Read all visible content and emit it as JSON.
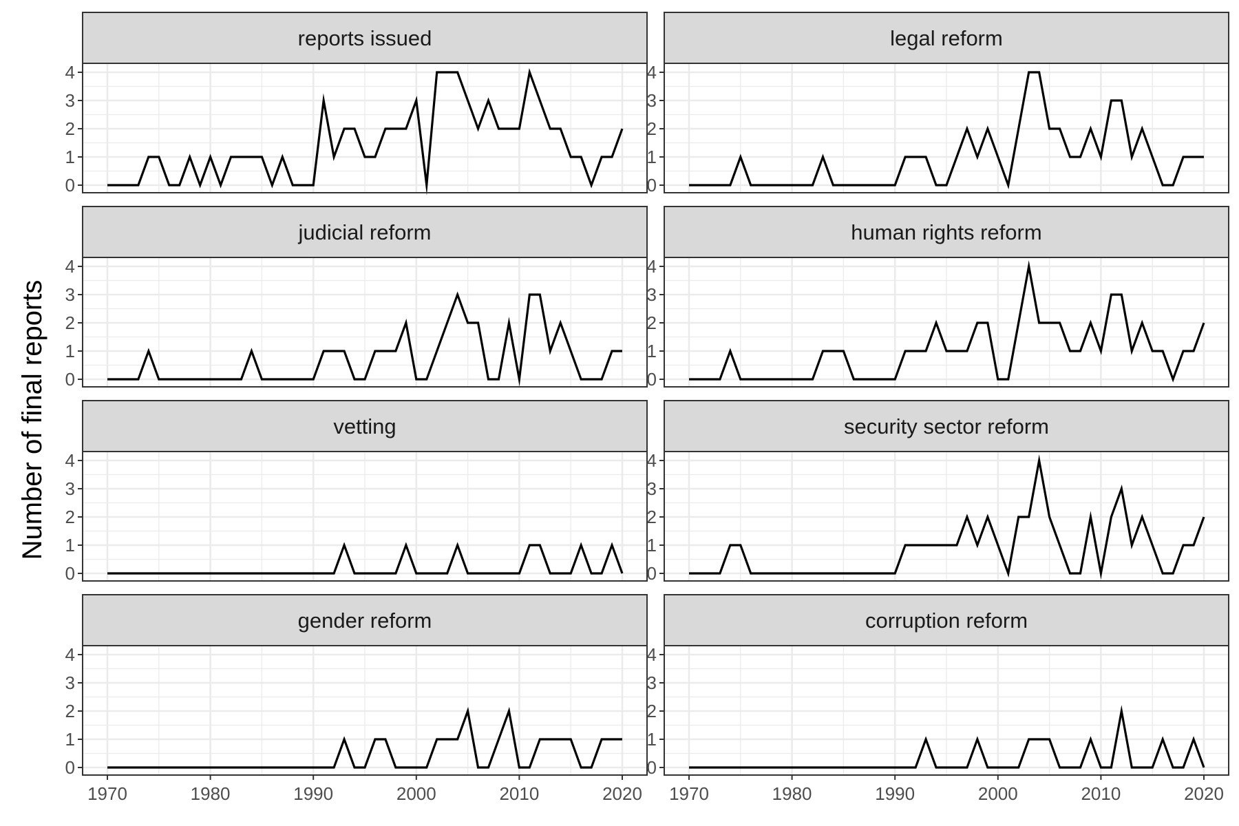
{
  "chart_data": {
    "type": "line",
    "ylabel": "Number of final reports",
    "xlabel": "",
    "xlim": [
      1970,
      2020
    ],
    "ylim": [
      0,
      4
    ],
    "x_ticks": [
      1970,
      1980,
      1990,
      2000,
      2010,
      2020
    ],
    "y_ticks": [
      0,
      1,
      2,
      3,
      4
    ],
    "grid": true,
    "colors": {
      "line": "#000000",
      "strip_fill": "#d9d9d9",
      "panel_border": "#333333",
      "grid": "#ebebeb",
      "tick_text": "#4d4d4d"
    },
    "x": [
      1970,
      1971,
      1972,
      1973,
      1974,
      1975,
      1976,
      1977,
      1978,
      1979,
      1980,
      1981,
      1982,
      1983,
      1984,
      1985,
      1986,
      1987,
      1988,
      1989,
      1990,
      1991,
      1992,
      1993,
      1994,
      1995,
      1996,
      1997,
      1998,
      1999,
      2000,
      2001,
      2002,
      2003,
      2004,
      2005,
      2006,
      2007,
      2008,
      2009,
      2010,
      2011,
      2012,
      2013,
      2014,
      2015,
      2016,
      2017,
      2018,
      2019,
      2020
    ],
    "series": [
      {
        "name": "reports issued",
        "values": [
          0,
          0,
          0,
          0,
          1,
          1,
          0,
          0,
          1,
          0,
          1,
          0,
          1,
          1,
          1,
          1,
          0,
          1,
          0,
          0,
          0,
          3,
          1,
          2,
          2,
          1,
          1,
          2,
          2,
          2,
          3,
          0,
          4,
          4,
          4,
          3,
          2,
          3,
          2,
          2,
          2,
          4,
          3,
          2,
          2,
          1,
          1,
          0,
          1,
          1,
          2
        ]
      },
      {
        "name": "legal reform",
        "values": [
          0,
          0,
          0,
          0,
          0,
          1,
          0,
          0,
          0,
          0,
          0,
          0,
          0,
          1,
          0,
          0,
          0,
          0,
          0,
          0,
          0,
          1,
          1,
          1,
          0,
          0,
          1,
          2,
          1,
          2,
          1,
          0,
          2,
          4,
          4,
          2,
          2,
          1,
          1,
          2,
          1,
          3,
          3,
          1,
          2,
          1,
          0,
          0,
          1,
          1,
          1
        ]
      },
      {
        "name": "judicial reform",
        "values": [
          0,
          0,
          0,
          0,
          1,
          0,
          0,
          0,
          0,
          0,
          0,
          0,
          0,
          0,
          1,
          0,
          0,
          0,
          0,
          0,
          0,
          1,
          1,
          1,
          0,
          0,
          1,
          1,
          1,
          2,
          0,
          0,
          1,
          2,
          3,
          2,
          2,
          0,
          0,
          2,
          0,
          3,
          3,
          1,
          2,
          1,
          0,
          0,
          0,
          1,
          1
        ]
      },
      {
        "name": "human rights reform",
        "values": [
          0,
          0,
          0,
          0,
          1,
          0,
          0,
          0,
          0,
          0,
          0,
          0,
          0,
          1,
          1,
          1,
          0,
          0,
          0,
          0,
          0,
          1,
          1,
          1,
          2,
          1,
          1,
          1,
          2,
          2,
          0,
          0,
          2,
          4,
          2,
          2,
          2,
          1,
          1,
          2,
          1,
          3,
          3,
          1,
          2,
          1,
          1,
          0,
          1,
          1,
          2
        ]
      },
      {
        "name": "vetting",
        "values": [
          0,
          0,
          0,
          0,
          0,
          0,
          0,
          0,
          0,
          0,
          0,
          0,
          0,
          0,
          0,
          0,
          0,
          0,
          0,
          0,
          0,
          0,
          0,
          1,
          0,
          0,
          0,
          0,
          0,
          1,
          0,
          0,
          0,
          0,
          1,
          0,
          0,
          0,
          0,
          0,
          0,
          1,
          1,
          0,
          0,
          0,
          1,
          0,
          0,
          1,
          0
        ]
      },
      {
        "name": "security sector reform",
        "values": [
          0,
          0,
          0,
          0,
          1,
          1,
          0,
          0,
          0,
          0,
          0,
          0,
          0,
          0,
          0,
          0,
          0,
          0,
          0,
          0,
          0,
          1,
          1,
          1,
          1,
          1,
          1,
          2,
          1,
          2,
          1,
          0,
          2,
          2,
          4,
          2,
          1,
          0,
          0,
          2,
          0,
          2,
          3,
          1,
          2,
          1,
          0,
          0,
          1,
          1,
          2
        ]
      },
      {
        "name": "gender reform",
        "values": [
          0,
          0,
          0,
          0,
          0,
          0,
          0,
          0,
          0,
          0,
          0,
          0,
          0,
          0,
          0,
          0,
          0,
          0,
          0,
          0,
          0,
          0,
          0,
          1,
          0,
          0,
          1,
          1,
          0,
          0,
          0,
          0,
          1,
          1,
          1,
          2,
          0,
          0,
          1,
          2,
          0,
          0,
          1,
          1,
          1,
          1,
          0,
          0,
          1,
          1,
          1
        ]
      },
      {
        "name": "corruption reform",
        "values": [
          0,
          0,
          0,
          0,
          0,
          0,
          0,
          0,
          0,
          0,
          0,
          0,
          0,
          0,
          0,
          0,
          0,
          0,
          0,
          0,
          0,
          0,
          0,
          1,
          0,
          0,
          0,
          0,
          1,
          0,
          0,
          0,
          0,
          1,
          1,
          1,
          0,
          0,
          0,
          1,
          0,
          0,
          2,
          0,
          0,
          0,
          1,
          0,
          0,
          1,
          0
        ]
      }
    ]
  }
}
